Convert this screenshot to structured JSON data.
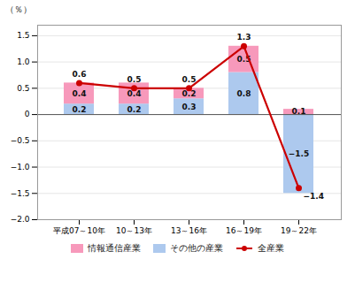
{
  "chart_data": {
    "type": "bar",
    "stacked": true,
    "ylabel": "（％）",
    "categories": [
      "平成07～10年",
      "10～13年",
      "13～16年",
      "16～19年",
      "19～22年"
    ],
    "series": [
      {
        "name": "情報通信産業",
        "type": "bar",
        "color": "#F799BB",
        "values": [
          0.4,
          0.4,
          0.2,
          0.5,
          0.1
        ]
      },
      {
        "name": "その他の産業",
        "type": "bar",
        "color": "#ADC9EE",
        "values": [
          0.2,
          0.2,
          0.3,
          0.8,
          -1.5
        ],
        "value_labels": [
          "0.2",
          "0.2",
          "0.3",
          "0.8",
          "−1.5"
        ]
      },
      {
        "name": "全産業",
        "type": "line",
        "color": "#CC0000",
        "marker": "circle",
        "values": [
          0.6,
          0.5,
          0.5,
          1.3,
          -1.4
        ],
        "value_labels": [
          "0.6",
          "0.5",
          "0.5",
          "1.3",
          "−1.4"
        ]
      }
    ],
    "ylim": [
      -2.0,
      1.7
    ],
    "yticks": [
      {
        "value": -2.0,
        "label": "−2.0"
      },
      {
        "value": -1.5,
        "label": "−1.5"
      },
      {
        "value": -1.0,
        "label": "−1.0"
      },
      {
        "value": -0.5,
        "label": "−0.5"
      },
      0,
      0.5,
      {
        "value": 1.0,
        "label": "1.0"
      },
      1.5
    ],
    "grid": true,
    "legend": "bottom",
    "data_labels": true
  }
}
